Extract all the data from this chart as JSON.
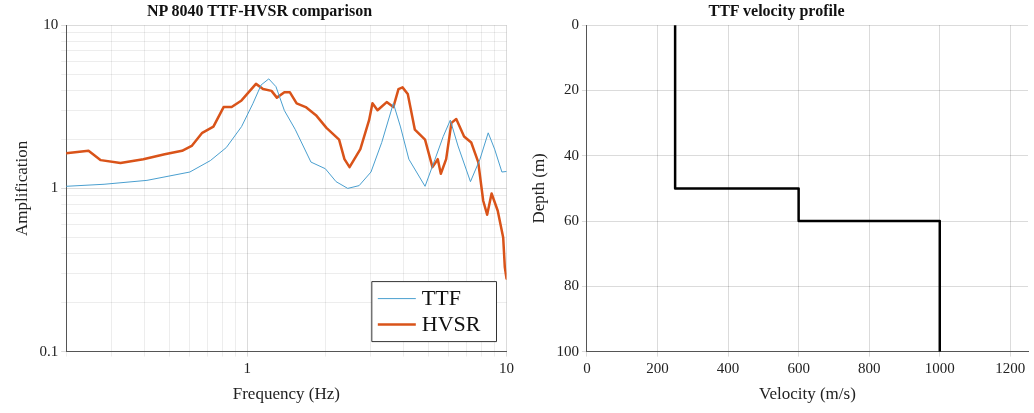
{
  "chart_data": [
    {
      "type": "line",
      "title": "NP 8040 TTF-HVSR comparison",
      "xlabel": "Frequency (Hz)",
      "ylabel": "Amplification",
      "log": "xy",
      "grid": true,
      "legend": "bottom right",
      "marker": "none",
      "line_style": "solid",
      "xlim": [
        0.2,
        10
      ],
      "ylim": [
        0.1,
        10
      ],
      "xticks": [
        {
          "value": 0.2,
          "label": null
        },
        {
          "value": 0.3,
          "label": null
        },
        {
          "value": 0.4,
          "label": null
        },
        {
          "value": 0.5,
          "label": null
        },
        {
          "value": 0.6,
          "label": null
        },
        {
          "value": 0.7,
          "label": null
        },
        {
          "value": 0.8,
          "label": null
        },
        {
          "value": 0.9,
          "label": null
        },
        1,
        {
          "value": 2,
          "label": null
        },
        {
          "value": 3,
          "label": null
        },
        {
          "value": 4,
          "label": null
        },
        {
          "value": 5,
          "label": null
        },
        {
          "value": 6,
          "label": null
        },
        {
          "value": 7,
          "label": null
        },
        {
          "value": 8,
          "label": null
        },
        {
          "value": 9,
          "label": null
        },
        10
      ],
      "yticks": [
        0.1,
        {
          "value": 0.2,
          "label": null
        },
        {
          "value": 0.3,
          "label": null
        },
        {
          "value": 0.4,
          "label": null
        },
        {
          "value": 0.5,
          "label": null
        },
        {
          "value": 0.6,
          "label": null
        },
        {
          "value": 0.7,
          "label": null
        },
        {
          "value": 0.8,
          "label": null
        },
        {
          "value": 0.9,
          "label": null
        },
        1,
        {
          "value": 2,
          "label": null
        },
        {
          "value": 3,
          "label": null
        },
        {
          "value": 4,
          "label": null
        },
        {
          "value": 5,
          "label": null
        },
        {
          "value": 6,
          "label": null
        },
        {
          "value": 7,
          "label": null
        },
        {
          "value": 8,
          "label": null
        },
        {
          "value": 9,
          "label": null
        },
        10
      ],
      "series": [
        {
          "name": "TTF",
          "color": "#4a9fcf",
          "x": [
            0.2,
            0.28,
            0.41,
            0.6,
            0.72,
            0.83,
            0.95,
            1.05,
            1.13,
            1.21,
            1.29,
            1.39,
            1.53,
            1.76,
            2.0,
            2.2,
            2.44,
            2.7,
            3.0,
            3.3,
            3.66,
            3.9,
            4.2,
            4.85,
            5.3,
            5.7,
            6.07,
            6.5,
            7.26,
            7.9,
            8.5,
            9.0,
            9.6,
            10
          ],
          "values": [
            1.03,
            1.06,
            1.12,
            1.26,
            1.48,
            1.78,
            2.39,
            3.3,
            4.3,
            4.69,
            4.2,
            3.0,
            2.3,
            1.45,
            1.32,
            1.1,
            1.0,
            1.04,
            1.26,
            1.91,
            3.32,
            2.38,
            1.51,
            1.03,
            1.51,
            2.08,
            2.62,
            1.82,
            1.1,
            1.51,
            2.19,
            1.74,
            1.26,
            1.27
          ]
        },
        {
          "name": "HVSR",
          "color": "#d95319",
          "x": [
            0.2,
            0.244,
            0.272,
            0.324,
            0.397,
            0.48,
            0.56,
            0.61,
            0.67,
            0.74,
            0.81,
            0.87,
            0.95,
            1.08,
            1.15,
            1.24,
            1.3,
            1.39,
            1.46,
            1.55,
            1.68,
            1.84,
            2.02,
            2.26,
            2.37,
            2.48,
            2.73,
            2.95,
            3.04,
            3.18,
            3.45,
            3.66,
            3.83,
            3.97,
            4.16,
            4.43,
            4.85,
            5.18,
            5.43,
            5.58,
            5.85,
            6.13,
            6.4,
            6.86,
            7.31,
            7.78,
            8.13,
            8.42,
            8.76,
            9.25,
            9.71,
            9.85,
            10
          ],
          "values": [
            1.64,
            1.7,
            1.49,
            1.43,
            1.51,
            1.62,
            1.7,
            1.82,
            2.19,
            2.39,
            3.15,
            3.15,
            3.46,
            4.37,
            4.06,
            3.96,
            3.6,
            3.88,
            3.88,
            3.32,
            3.15,
            2.81,
            2.35,
            1.99,
            1.51,
            1.35,
            1.74,
            2.62,
            3.32,
            3.01,
            3.38,
            3.15,
            4.06,
            4.16,
            3.79,
            2.29,
            1.99,
            1.35,
            1.51,
            1.23,
            1.51,
            2.52,
            2.66,
            2.08,
            1.91,
            1.45,
            0.84,
            0.69,
            0.93,
            0.73,
            0.5,
            0.33,
            0.28
          ]
        }
      ]
    },
    {
      "type": "line",
      "title": "TTF velocity profile",
      "xlabel": "Velocity (m/s)",
      "ylabel": "Depth (m)",
      "grid": true,
      "marker": "none",
      "line_style": "solid",
      "xlim": [
        0,
        1250
      ],
      "ylim": [
        100,
        0
      ],
      "xticks": [
        0,
        200,
        400,
        600,
        800,
        1000,
        1200
      ],
      "yticks": [
        0,
        20,
        40,
        60,
        80,
        100
      ],
      "series": [
        {
          "color": "#000000",
          "x": [
            250,
            250,
            600,
            600,
            1000,
            1000
          ],
          "values": [
            0,
            50,
            50,
            60,
            60,
            100
          ]
        }
      ]
    }
  ]
}
